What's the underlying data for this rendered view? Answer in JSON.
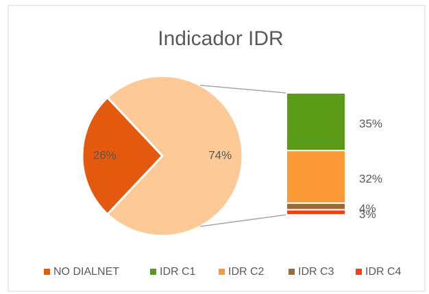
{
  "chart_data": {
    "type": "bar-of-pie",
    "title": "Indicador IDR",
    "categories": [
      "NO DIALNET",
      "IDR C1",
      "IDR C2",
      "IDR C3",
      "IDR C4"
    ],
    "values": [
      26,
      35,
      32,
      4,
      3
    ],
    "value_labels": [
      "26%",
      "35%",
      "32%",
      "4%",
      "3%"
    ],
    "colors": [
      "#e35a0e",
      "#5a9a16",
      "#fd9a38",
      "#9b6a36",
      "#fd3d10"
    ],
    "other": {
      "value": 74,
      "value_label": "74%",
      "color": "#fdc997"
    },
    "legend": "bottom"
  }
}
